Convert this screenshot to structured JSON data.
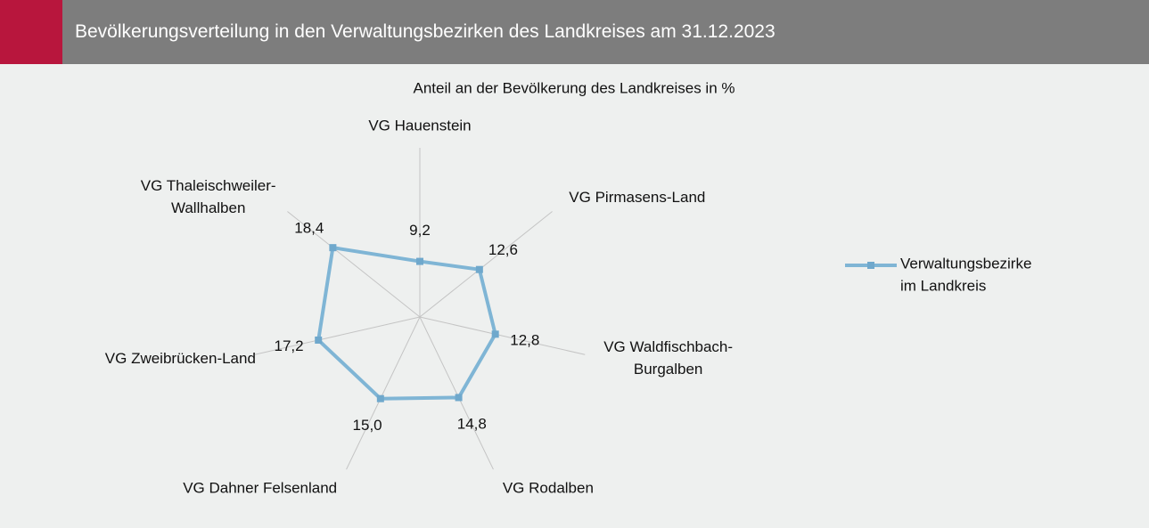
{
  "header": {
    "title": "Bevölkerungsverteilung in den Verwaltungsbezirken des Landkreises am 31.12.2023"
  },
  "chart_data": {
    "type": "radar",
    "title": "Anteil an der Bevölkerung des Landkreises in %",
    "categories": [
      "VG Hauenstein",
      "VG Pirmasens-Land",
      "VG Waldfischbach-Burgalben",
      "VG Rodalben",
      "VG Dahner Felsenland",
      "VG Zweibrücken-Land",
      "VG Thaleischweiler-Wallhalben"
    ],
    "series": [
      {
        "name": "Verwaltungsbezirke im Landkreis",
        "color": "#7fb5d5",
        "values": [
          9.2,
          12.6,
          12.8,
          14.8,
          15.0,
          17.2,
          18.4
        ],
        "value_labels": [
          "9,2",
          "12,6",
          "12,8",
          "14,8",
          "15,0",
          "17,2",
          "18,4"
        ]
      }
    ],
    "ylim": [
      0,
      28
    ],
    "legend": "right"
  }
}
